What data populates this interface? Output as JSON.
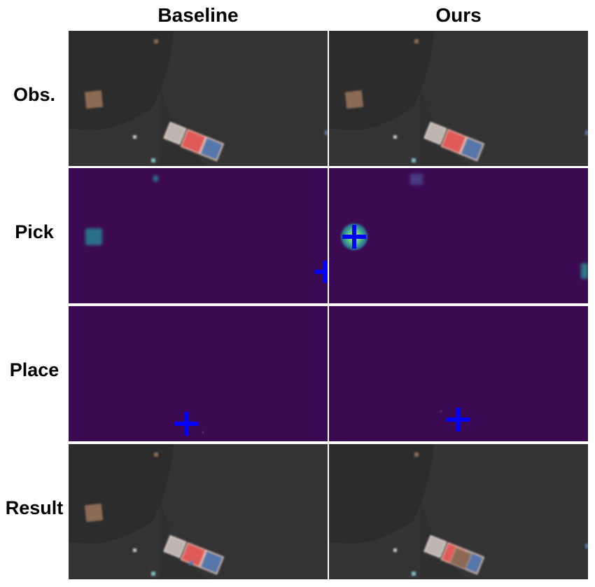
{
  "columns": [
    "Baseline",
    "Ours"
  ],
  "rows": [
    "Obs.",
    "Pick",
    "Place",
    "Result"
  ],
  "colors": {
    "scene_background": "#333333",
    "scene_shadow": "#2b2b2b",
    "heatmap_background": "#3b0a52",
    "marker": "#0000ff",
    "object_brown": "#8a6a55",
    "object_gray": "#bdb5b0",
    "object_red": "#e05a58",
    "object_blue": "#5577aa",
    "object_teal": "#7fb9bf"
  }
}
